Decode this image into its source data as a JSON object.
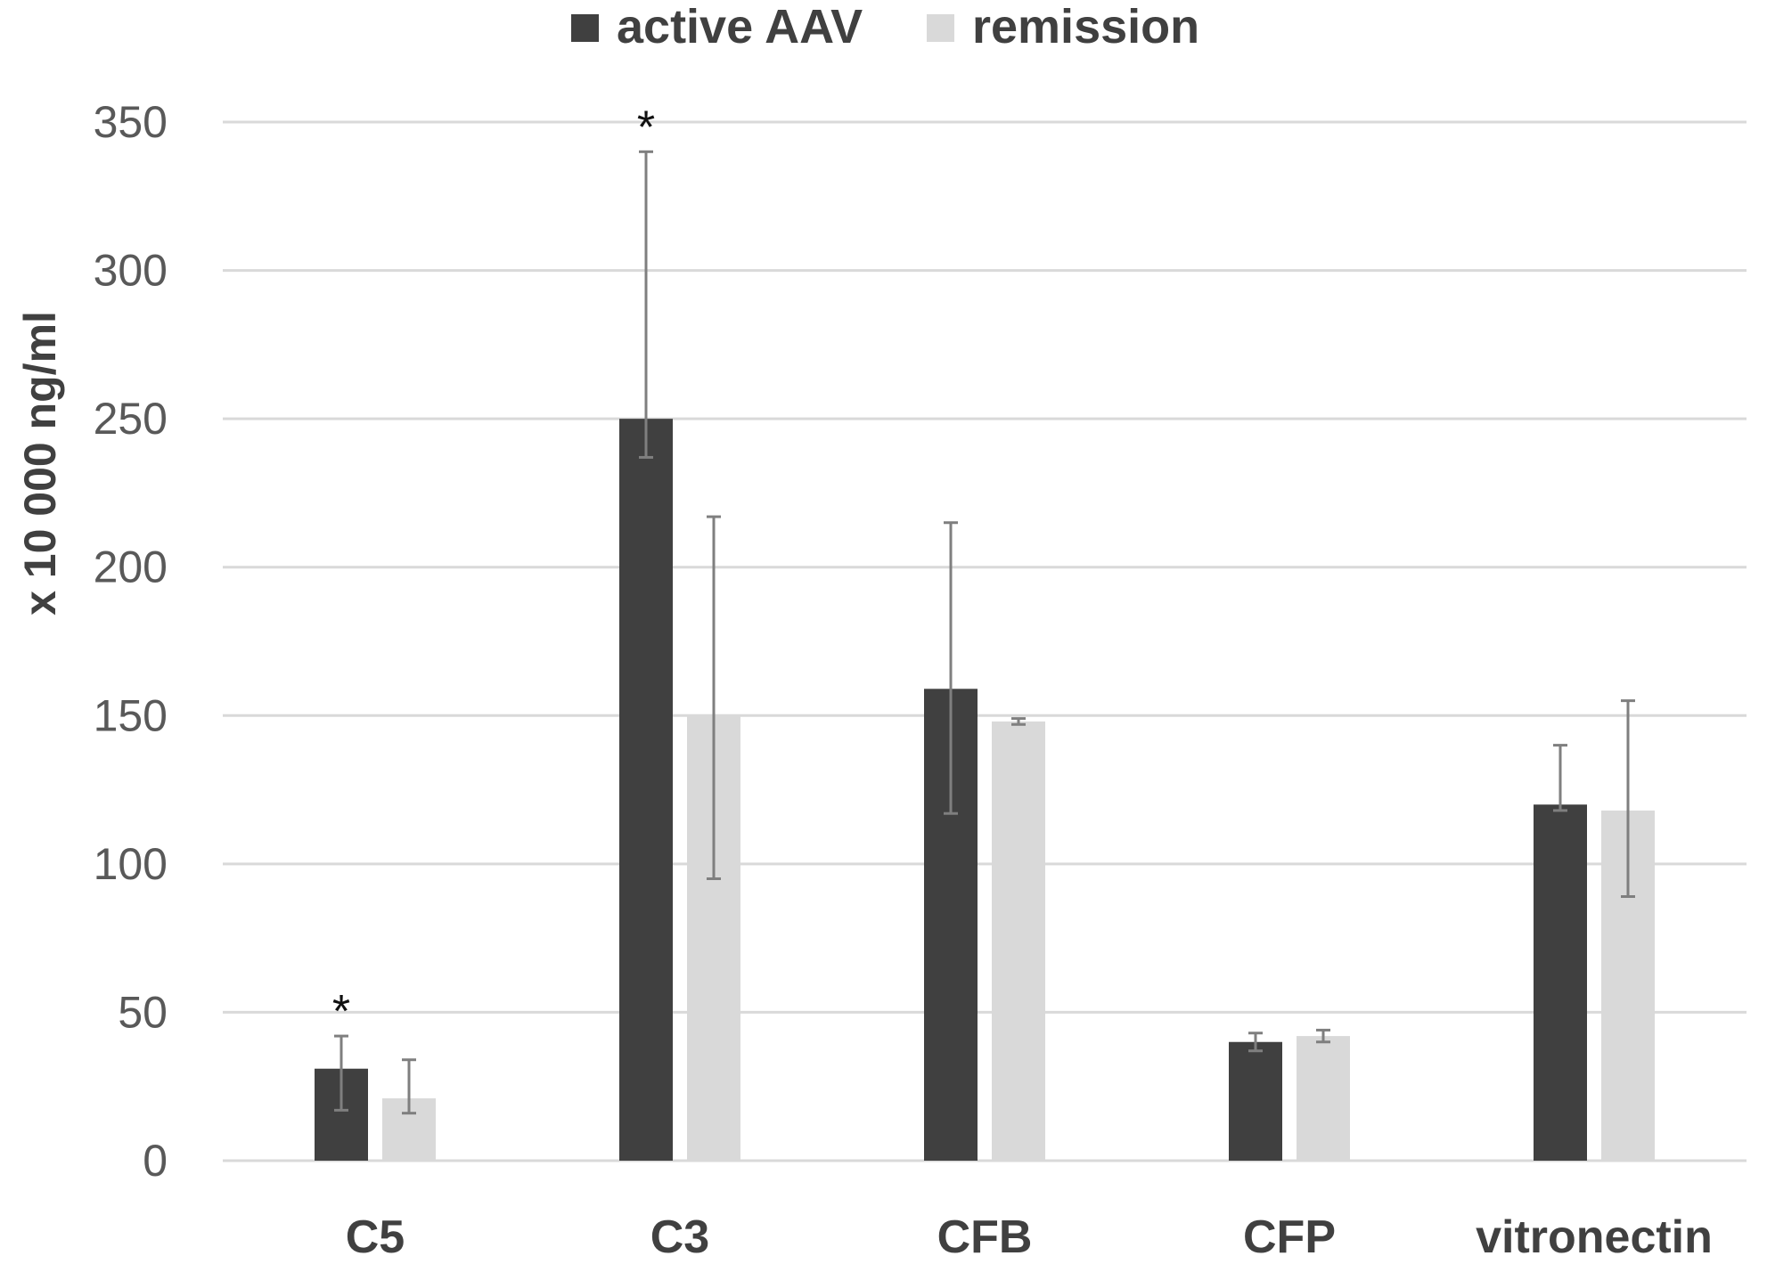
{
  "chart_data": {
    "type": "bar",
    "title": "",
    "xlabel": "",
    "ylabel": "x 10 000 ng/ml",
    "ylim": [
      0,
      350
    ],
    "yticks": [
      0,
      50,
      100,
      150,
      200,
      250,
      300,
      350
    ],
    "grid": true,
    "legend_position": "top",
    "categories": [
      "C5",
      "C3",
      "CFB",
      "CFP",
      "vitronectin"
    ],
    "series": [
      {
        "name": "active AAV",
        "color": "#404040",
        "values": [
          31,
          250,
          159,
          40,
          120
        ],
        "error_low": [
          17,
          237,
          117,
          37,
          118
        ],
        "error_high": [
          42,
          340,
          215,
          43,
          140
        ]
      },
      {
        "name": "remission",
        "color": "#d9d9d9",
        "values": [
          21,
          150,
          148,
          42,
          118
        ],
        "error_low": [
          16,
          95,
          147,
          40,
          89
        ],
        "error_high": [
          34,
          217,
          149,
          44,
          155
        ]
      }
    ],
    "annotations": [
      {
        "category": "C5",
        "series": "active AAV",
        "text": "*"
      },
      {
        "category": "C3",
        "series": "active AAV",
        "text": "*"
      }
    ]
  }
}
